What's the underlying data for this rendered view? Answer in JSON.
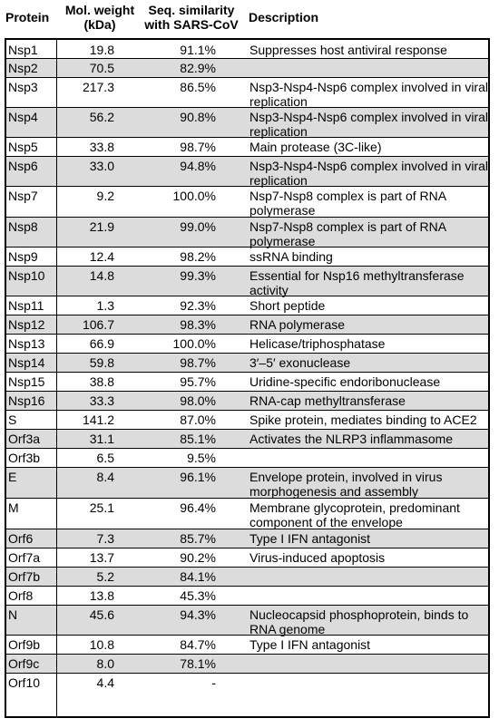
{
  "headers": {
    "protein": "Protein",
    "weight_line1": "Mol. weight",
    "weight_line2": "(kDa)",
    "similarity_line1": "Seq. similarity",
    "similarity_line2": "with SARS-CoV",
    "description": "Description"
  },
  "rows": [
    {
      "protein": "Nsp1",
      "weight": "19.8",
      "similarity": "91.1%",
      "description": "Suppresses host antiviral response"
    },
    {
      "protein": "Nsp2",
      "weight": "70.5",
      "similarity": "82.9%",
      "description": ""
    },
    {
      "protein": "Nsp3",
      "weight": "217.3",
      "similarity": "86.5%",
      "description": "Nsp3-Nsp4-Nsp6 complex involved in viral replication"
    },
    {
      "protein": "Nsp4",
      "weight": "56.2",
      "similarity": "90.8%",
      "description": "Nsp3-Nsp4-Nsp6 complex involved in viral replication"
    },
    {
      "protein": "Nsp5",
      "weight": "33.8",
      "similarity": "98.7%",
      "description": "Main protease (3C-like)"
    },
    {
      "protein": "Nsp6",
      "weight": "33.0",
      "similarity": "94.8%",
      "description": "Nsp3-Nsp4-Nsp6 complex involved in viral replication"
    },
    {
      "protein": "Nsp7",
      "weight": "9.2",
      "similarity": "100.0%",
      "description": "Nsp7-Nsp8 complex is part of RNA polymerase"
    },
    {
      "protein": "Nsp8",
      "weight": "21.9",
      "similarity": "99.0%",
      "description": "Nsp7-Nsp8 complex is part of RNA polymerase"
    },
    {
      "protein": "Nsp9",
      "weight": "12.4",
      "similarity": "98.2%",
      "description": "ssRNA binding"
    },
    {
      "protein": "Nsp10",
      "weight": "14.8",
      "similarity": "99.3%",
      "description": "Essential for Nsp16 methyltransferase activity"
    },
    {
      "protein": "Nsp11",
      "weight": "1.3",
      "similarity": "92.3%",
      "description": "Short peptide"
    },
    {
      "protein": "Nsp12",
      "weight": "106.7",
      "similarity": "98.3%",
      "description": "RNA polymerase"
    },
    {
      "protein": "Nsp13",
      "weight": "66.9",
      "similarity": "100.0%",
      "description": "Helicase/triphosphatase"
    },
    {
      "protein": "Nsp14",
      "weight": "59.8",
      "similarity": "98.7%",
      "description": "3′–5′ exonuclease"
    },
    {
      "protein": "Nsp15",
      "weight": "38.8",
      "similarity": "95.7%",
      "description": "Uridine-specific endoribonuclease"
    },
    {
      "protein": "Nsp16",
      "weight": "33.3",
      "similarity": "98.0%",
      "description": "RNA-cap methyltransferase"
    },
    {
      "protein": "S",
      "weight": "141.2",
      "similarity": "87.0%",
      "description": "Spike protein, mediates binding to ACE2"
    },
    {
      "protein": "Orf3a",
      "weight": "31.1",
      "similarity": "85.1%",
      "description": "Activates the NLRP3 inflammasome"
    },
    {
      "protein": "Orf3b",
      "weight": "6.5",
      "similarity": "9.5%",
      "description": ""
    },
    {
      "protein": "E",
      "weight": "8.4",
      "similarity": "96.1%",
      "description": "Envelope protein, involved in virus morphogenesis and assembly"
    },
    {
      "protein": "M",
      "weight": "25.1",
      "similarity": "96.4%",
      "description": "Membrane glycoprotein, predominant component of the envelope"
    },
    {
      "protein": "Orf6",
      "weight": "7.3",
      "similarity": "85.7%",
      "description": "Type I IFN antagonist"
    },
    {
      "protein": "Orf7a",
      "weight": "13.7",
      "similarity": "90.2%",
      "description": "Virus-induced apoptosis"
    },
    {
      "protein": "Orf7b",
      "weight": "5.2",
      "similarity": "84.1%",
      "description": ""
    },
    {
      "protein": "Orf8",
      "weight": "13.8",
      "similarity": "45.3%",
      "description": ""
    },
    {
      "protein": "N",
      "weight": "45.6",
      "similarity": "94.3%",
      "description": "Nucleocapsid phosphoprotein, binds to RNA genome"
    },
    {
      "protein": "Orf9b",
      "weight": "10.8",
      "similarity": "84.7%",
      "description": "Type I IFN antagonist"
    },
    {
      "protein": "Orf9c",
      "weight": "8.0",
      "similarity": "78.1%",
      "description": ""
    },
    {
      "protein": "Orf10",
      "weight": "4.4",
      "similarity": "-",
      "description": ""
    }
  ]
}
